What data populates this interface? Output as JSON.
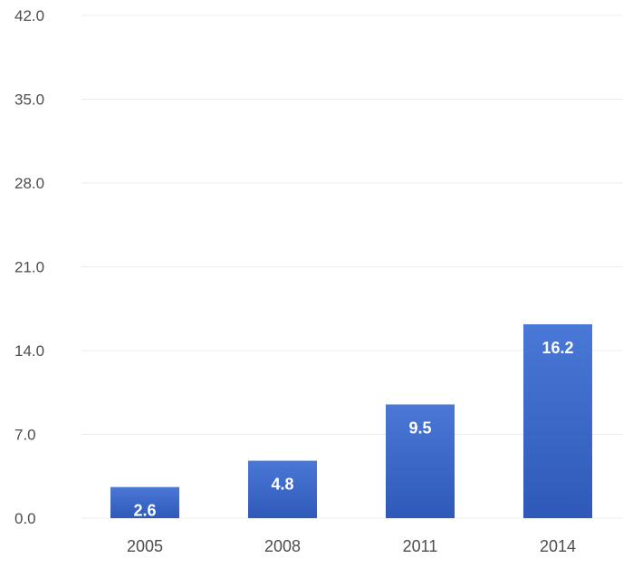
{
  "chart_data": {
    "type": "bar",
    "title": "",
    "xlabel": "",
    "ylabel": "",
    "categories": [
      "2005",
      "2008",
      "2011",
      "2014"
    ],
    "values": [
      2.6,
      4.8,
      9.5,
      16.2
    ],
    "value_labels": [
      "2.6",
      "4.8",
      "9.5",
      "16.2"
    ],
    "yticks": [
      "0.0",
      "7.0",
      "14.0",
      "21.0",
      "28.0",
      "35.0",
      "42.0"
    ],
    "ylim": [
      0,
      42
    ],
    "grid": true,
    "legend": "none",
    "bar_color_top": "#4a78d6",
    "bar_color_bottom": "#2e59b8",
    "label_color": "#ffffff"
  }
}
